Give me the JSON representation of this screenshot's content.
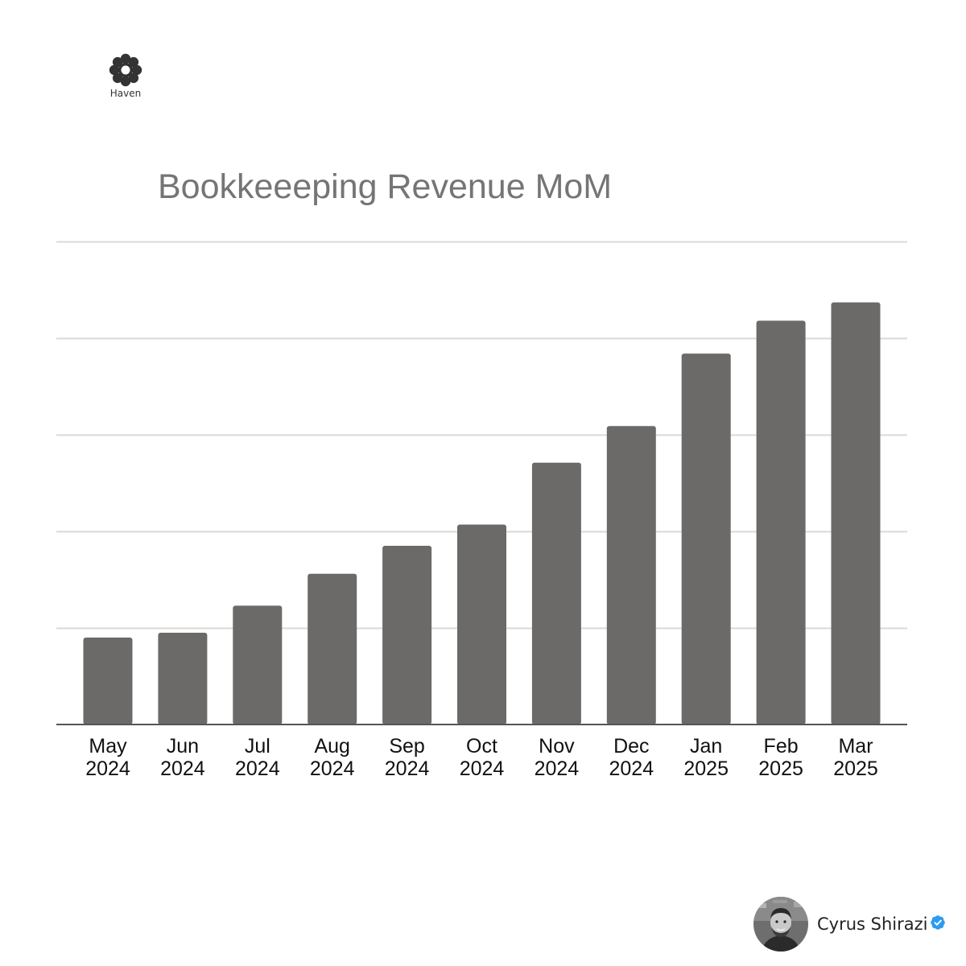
{
  "brand": {
    "logo_text": "Haven"
  },
  "chart_data": {
    "type": "bar",
    "title": "Bookkeeeping Revenue MoM",
    "xlabel": "",
    "ylabel": "",
    "ylim": [
      0,
      5
    ],
    "grid": true,
    "gridlines": [
      1,
      2,
      3,
      4,
      5
    ],
    "categories": [
      [
        "May",
        "2024"
      ],
      [
        "Jun",
        "2024"
      ],
      [
        "Jul",
        "2024"
      ],
      [
        "Aug",
        "2024"
      ],
      [
        "Sep",
        "2024"
      ],
      [
        "Oct",
        "2024"
      ],
      [
        "Nov",
        "2024"
      ],
      [
        "Dec",
        "2024"
      ],
      [
        "Jan",
        "2025"
      ],
      [
        "Feb",
        "2025"
      ],
      [
        "Mar",
        "2025"
      ]
    ],
    "values": [
      0.9,
      0.95,
      1.23,
      1.56,
      1.85,
      2.07,
      2.71,
      3.09,
      3.84,
      4.18,
      4.37
    ],
    "bar_color": "#6b6a69",
    "grid_color": "#d9d9d9",
    "axis_color": "#555555"
  },
  "author": {
    "name": "Cyrus Shirazi",
    "verified_color": "#2d9bf0"
  }
}
